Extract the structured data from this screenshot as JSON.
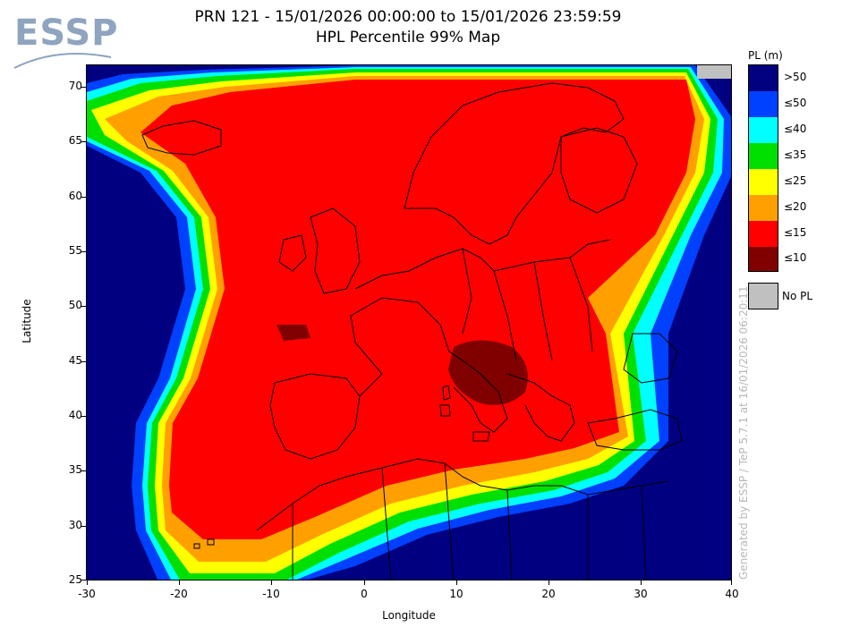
{
  "logo": {
    "text": "ESSP"
  },
  "title": {
    "line1": "PRN 121 - 15/01/2026 00:00:00 to 15/01/2026 23:59:59",
    "line2": "HPL Percentile 99% Map"
  },
  "axes": {
    "xlabel": "Longitude",
    "ylabel": "Latitude",
    "xticks": [
      "-30",
      "-20",
      "-10",
      "0",
      "10",
      "20",
      "30",
      "40"
    ],
    "yticks": [
      "70",
      "65",
      "60",
      "55",
      "50",
      "45",
      "40",
      "35",
      "30",
      "25"
    ],
    "xlim": [
      -30,
      40
    ],
    "ylim": [
      25,
      72
    ]
  },
  "legend": {
    "title": "PL (m)",
    "items": [
      {
        "label": ">50",
        "color": "#000080"
      },
      {
        "label": "≤50",
        "color": "#0040ff"
      },
      {
        "label": "≤40",
        "color": "#00ffff"
      },
      {
        "label": "≤35",
        "color": "#00e000"
      },
      {
        "label": "≤25",
        "color": "#ffff00"
      },
      {
        "label": "≤20",
        "color": "#ffa000"
      },
      {
        "label": "≤15",
        "color": "#ff0000"
      },
      {
        "label": "≤10",
        "color": "#800000"
      }
    ],
    "no_pl": {
      "label": "No PL",
      "color": "#c0c0c0"
    }
  },
  "generated_note": "Generated by ESSP / TeP 5.7.1 at 16/01/2026 06:20:11",
  "colors": {
    "ocean_deep": "#000080",
    "blue": "#0040ff",
    "cyan": "#00ffff",
    "green": "#00e000",
    "yellow": "#ffff00",
    "orange": "#ffa000",
    "red": "#ff0000",
    "darkred": "#800000"
  }
}
